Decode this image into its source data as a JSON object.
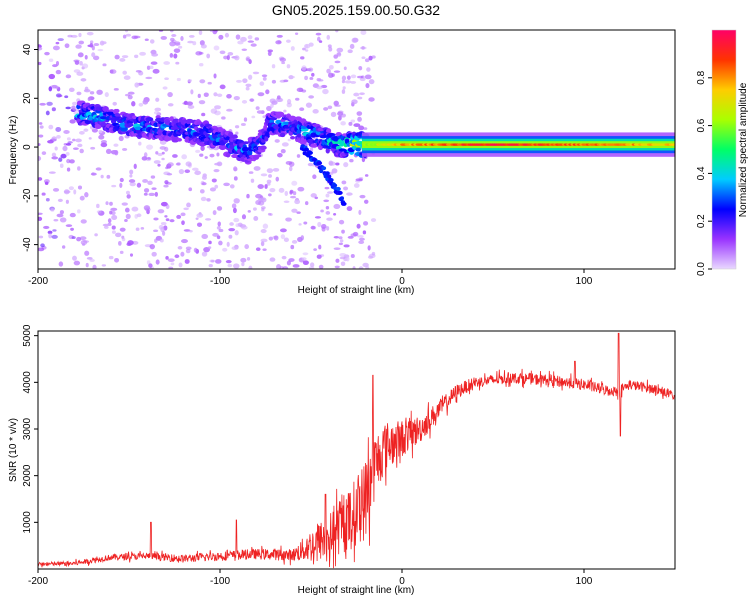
{
  "title": "GN05.2025.159.00.50.G32",
  "chart_data": [
    {
      "type": "heatmap",
      "xlabel": "Height of straight line (km)",
      "ylabel": "Frequency (Hz)",
      "xlim": [
        -200,
        150
      ],
      "ylim": [
        -50,
        48
      ],
      "xticks": [
        -200,
        -100,
        0,
        100
      ],
      "yticks": [
        -40,
        -20,
        0,
        20,
        40
      ],
      "colorbar": {
        "label": "Normalized spectral amplitude",
        "range": [
          0,
          1
        ],
        "ticks": [
          0,
          0.2,
          0.4,
          0.6,
          0.8
        ],
        "colormap": [
          "#e9d8ff",
          "#9933ff",
          "#0000ff",
          "#00ccff",
          "#00ff66",
          "#aaff00",
          "#ffcc00",
          "#ff3300",
          "#ff0066"
        ]
      },
      "ridge": {
        "x": [
          -178,
          -165,
          -150,
          -135,
          -120,
          -105,
          -95,
          -85,
          -78,
          -72,
          -60,
          -45,
          -35,
          -25,
          -15,
          0,
          50,
          100,
          150
        ],
        "y": [
          14,
          12,
          9,
          8,
          7,
          5,
          1,
          -2,
          1,
          10,
          8,
          4,
          1,
          1,
          1,
          1,
          1,
          1,
          1
        ],
        "amplitude": [
          0.35,
          0.32,
          0.3,
          0.3,
          0.28,
          0.3,
          0.3,
          0.28,
          0.25,
          0.3,
          0.3,
          0.35,
          0.4,
          0.55,
          0.65,
          0.8,
          0.95,
          0.85,
          0.75
        ]
      },
      "branch": {
        "x": [
          -55,
          -45,
          -38,
          -32
        ],
        "y": [
          0,
          -8,
          -15,
          -22
        ]
      }
    },
    {
      "type": "line",
      "xlabel": "Height of straight line (km)",
      "ylabel": "SNR (10 * v/v)",
      "xlim": [
        -200,
        150
      ],
      "ylim": [
        0,
        5100
      ],
      "xticks": [
        -200,
        -100,
        0,
        100
      ],
      "yticks": [
        1000,
        2000,
        3000,
        4000,
        5000
      ],
      "color": "#ee2222",
      "trend": {
        "x": [
          -200,
          -180,
          -160,
          -140,
          -120,
          -100,
          -80,
          -60,
          -50,
          -40,
          -30,
          -20,
          -15,
          -10,
          -5,
          0,
          10,
          20,
          30,
          40,
          60,
          80,
          100,
          110,
          118,
          125,
          140,
          150
        ],
        "y": [
          100,
          120,
          250,
          280,
          220,
          280,
          320,
          300,
          500,
          700,
          1000,
          1500,
          2200,
          2600,
          2700,
          2800,
          3000,
          3400,
          3800,
          4000,
          4100,
          4050,
          3950,
          3850,
          3800,
          3950,
          3850,
          3700
        ]
      },
      "noise": {
        "x": [
          -200,
          -150,
          -100,
          -60,
          -50,
          -30,
          -20,
          -10,
          0,
          20,
          40,
          100,
          150
        ],
        "amplitude": [
          50,
          90,
          120,
          160,
          450,
          800,
          1100,
          700,
          500,
          250,
          150,
          150,
          120
        ]
      },
      "peaks": [
        {
          "x": -138,
          "y": 1000
        },
        {
          "x": -91,
          "y": 1050
        },
        {
          "x": -42,
          "y": 1600
        },
        {
          "x": -16,
          "y": 4150
        },
        {
          "x": 95,
          "y": 4450
        },
        {
          "x": 119,
          "y": 5050
        },
        {
          "x": 120,
          "y": 2850
        }
      ]
    }
  ]
}
